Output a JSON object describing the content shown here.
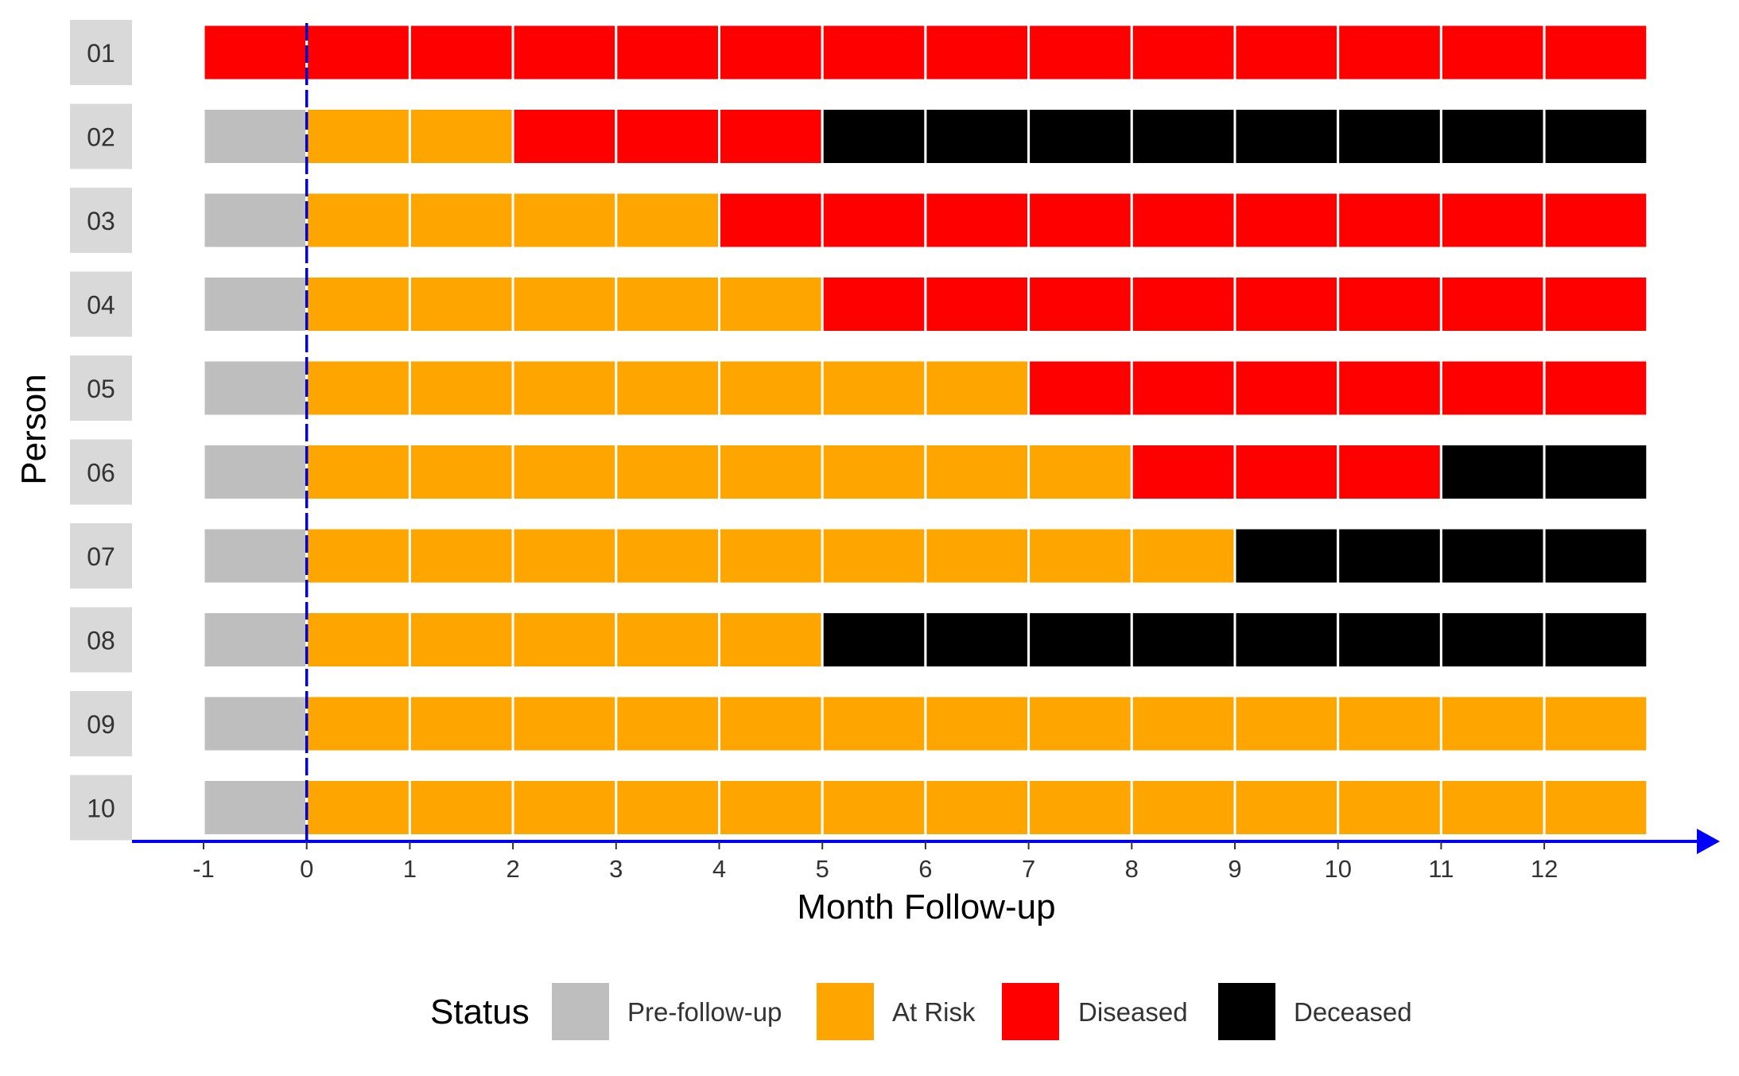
{
  "chart_data": {
    "type": "heatmap",
    "xlabel": "Month Follow-up",
    "ylabel": "Person",
    "x_ticks": [
      -1,
      0,
      1,
      2,
      3,
      4,
      5,
      6,
      7,
      8,
      9,
      10,
      11,
      12
    ],
    "x_range": [
      -1,
      13
    ],
    "persons": [
      "01",
      "02",
      "03",
      "04",
      "05",
      "06",
      "07",
      "08",
      "09",
      "10"
    ],
    "intervals": [
      [
        -1,
        0
      ],
      [
        0,
        1
      ],
      [
        1,
        2
      ],
      [
        2,
        3
      ],
      [
        3,
        4
      ],
      [
        4,
        5
      ],
      [
        5,
        6
      ],
      [
        6,
        7
      ],
      [
        7,
        8
      ],
      [
        8,
        9
      ],
      [
        9,
        10
      ],
      [
        10,
        11
      ],
      [
        11,
        12
      ],
      [
        12,
        13
      ]
    ],
    "status_by_person": {
      "01": [
        "Diseased",
        "Diseased",
        "Diseased",
        "Diseased",
        "Diseased",
        "Diseased",
        "Diseased",
        "Diseased",
        "Diseased",
        "Diseased",
        "Diseased",
        "Diseased",
        "Diseased",
        "Diseased"
      ],
      "02": [
        "Pre-follow-up",
        "At Risk",
        "At Risk",
        "Diseased",
        "Diseased",
        "Diseased",
        "Deceased",
        "Deceased",
        "Deceased",
        "Deceased",
        "Deceased",
        "Deceased",
        "Deceased",
        "Deceased"
      ],
      "03": [
        "Pre-follow-up",
        "At Risk",
        "At Risk",
        "At Risk",
        "At Risk",
        "Diseased",
        "Diseased",
        "Diseased",
        "Diseased",
        "Diseased",
        "Diseased",
        "Diseased",
        "Diseased",
        "Diseased"
      ],
      "04": [
        "Pre-follow-up",
        "At Risk",
        "At Risk",
        "At Risk",
        "At Risk",
        "At Risk",
        "Diseased",
        "Diseased",
        "Diseased",
        "Diseased",
        "Diseased",
        "Diseased",
        "Diseased",
        "Diseased"
      ],
      "05": [
        "Pre-follow-up",
        "At Risk",
        "At Risk",
        "At Risk",
        "At Risk",
        "At Risk",
        "At Risk",
        "At Risk",
        "Diseased",
        "Diseased",
        "Diseased",
        "Diseased",
        "Diseased",
        "Diseased"
      ],
      "06": [
        "Pre-follow-up",
        "At Risk",
        "At Risk",
        "At Risk",
        "At Risk",
        "At Risk",
        "At Risk",
        "At Risk",
        "At Risk",
        "Diseased",
        "Diseased",
        "Diseased",
        "Deceased",
        "Deceased"
      ],
      "07": [
        "Pre-follow-up",
        "At Risk",
        "At Risk",
        "At Risk",
        "At Risk",
        "At Risk",
        "At Risk",
        "At Risk",
        "At Risk",
        "At Risk",
        "Deceased",
        "Deceased",
        "Deceased",
        "Deceased"
      ],
      "08": [
        "Pre-follow-up",
        "At Risk",
        "At Risk",
        "At Risk",
        "At Risk",
        "At Risk",
        "Deceased",
        "Deceased",
        "Deceased",
        "Deceased",
        "Deceased",
        "Deceased",
        "Deceased",
        "Deceased"
      ],
      "09": [
        "Pre-follow-up",
        "At Risk",
        "At Risk",
        "At Risk",
        "At Risk",
        "At Risk",
        "At Risk",
        "At Risk",
        "At Risk",
        "At Risk",
        "At Risk",
        "At Risk",
        "At Risk",
        "At Risk"
      ],
      "10": [
        "Pre-follow-up",
        "At Risk",
        "At Risk",
        "At Risk",
        "At Risk",
        "At Risk",
        "At Risk",
        "At Risk",
        "At Risk",
        "At Risk",
        "At Risk",
        "At Risk",
        "At Risk",
        "At Risk"
      ]
    },
    "legend": {
      "title": "Status",
      "placement": "bottom",
      "entries": [
        {
          "label": "Pre-follow-up",
          "color": "#BEBEBE"
        },
        {
          "label": "At Risk",
          "color": "#FFA500"
        },
        {
          "label": "Diseased",
          "color": "#FF0000"
        },
        {
          "label": "Deceased",
          "color": "#000000"
        }
      ]
    },
    "reference_line_x": 0,
    "reference_line_color": "#0000CD",
    "axis_color": "#0000FF",
    "strip_background": "#D9D9D9",
    "grid": false
  }
}
